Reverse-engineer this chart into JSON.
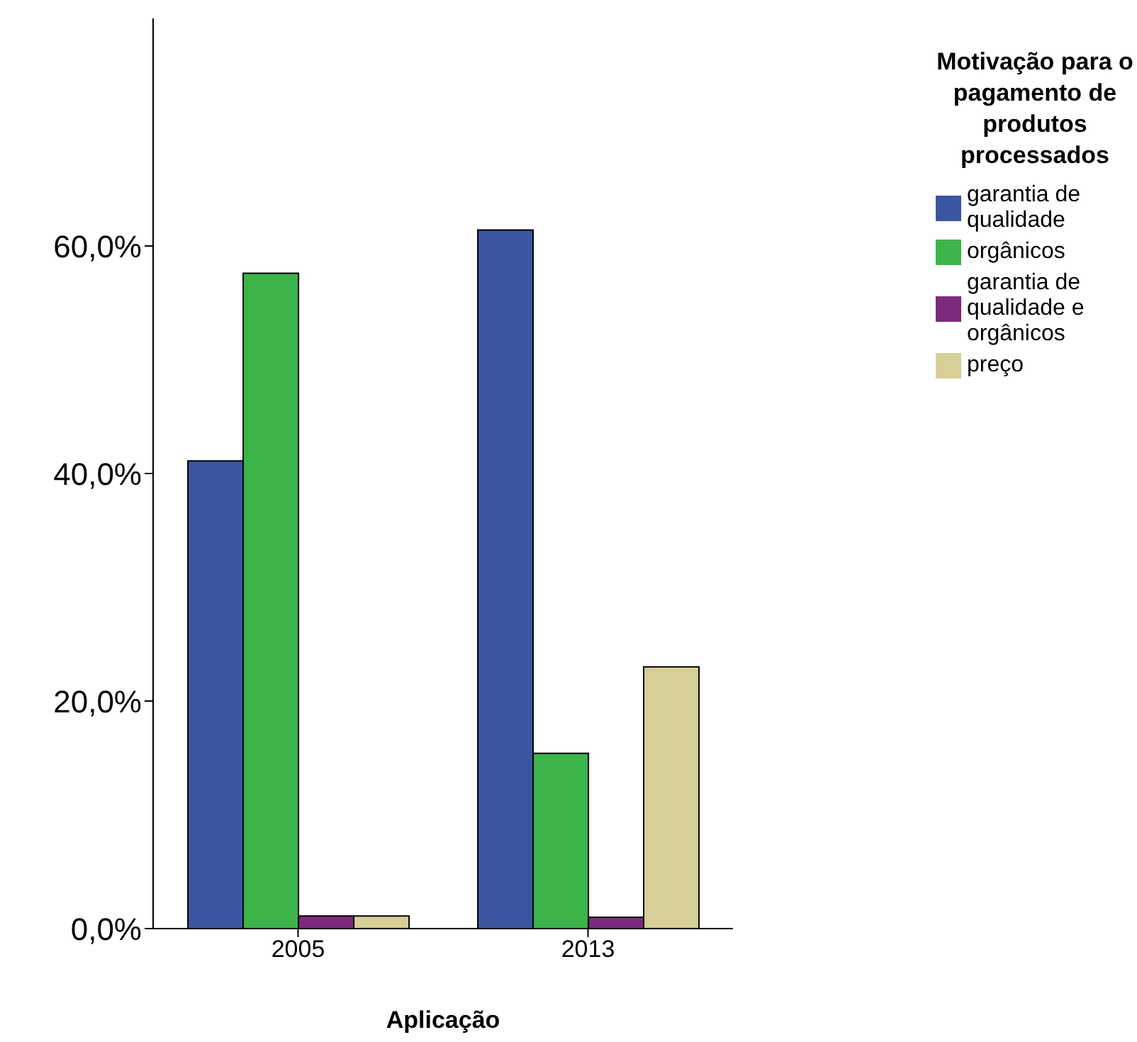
{
  "chart_data": {
    "type": "bar",
    "xlabel": "Aplicação",
    "legend_title": "Motivação para o pagamento de produtos processados",
    "categories": [
      "2005",
      "2013"
    ],
    "series": [
      {
        "name": "garantia de qualidade",
        "color": "#3a56a0",
        "values": [
          41.1,
          61.4
        ]
      },
      {
        "name": "orgânicos",
        "color": "#3cb44a",
        "values": [
          57.6,
          15.4
        ]
      },
      {
        "name": "garantia de qualidade e orgânicos",
        "color": "#7b2a7c",
        "values": [
          1.1,
          1.0
        ]
      },
      {
        "name": "preço",
        "color": "#d6cf98",
        "values": [
          1.1,
          23.0
        ]
      }
    ],
    "ylim": [
      0,
      80
    ],
    "yticks": [
      {
        "value": 0,
        "label": "0,0%"
      },
      {
        "value": 20,
        "label": "20,0%"
      },
      {
        "value": 40,
        "label": "40,0%"
      },
      {
        "value": 60,
        "label": "60,0%"
      }
    ],
    "legend": "right"
  }
}
